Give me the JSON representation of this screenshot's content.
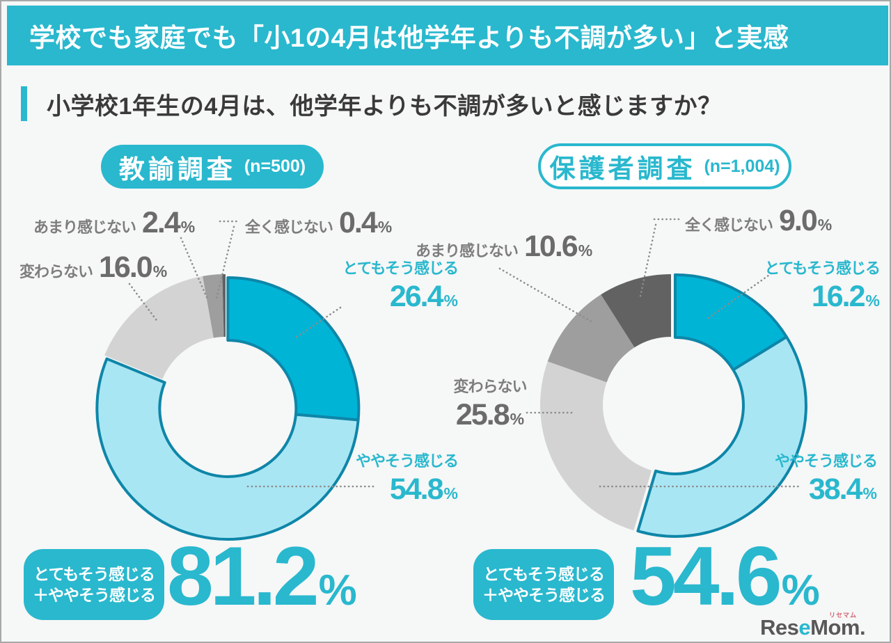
{
  "header": {
    "title": "学校でも家庭でも「小1の4月は他学年よりも不調が多い」と実感"
  },
  "question": {
    "text": "小学校1年生の4月は、他学年よりも不調が多いと感じますか？"
  },
  "strings": {
    "percent": "%"
  },
  "colors": {
    "accent": "#29b8ce",
    "donut_strong": "#00b4d6",
    "donut_soft": "#a9e6f4",
    "donut_stroke": "#0e86a8",
    "gray_light": "#d3d3d4",
    "gray_mid": "#9e9e9e",
    "gray_dark": "#626262",
    "label_gray": "#7d7d7d",
    "number_gray": "#6b6b6b",
    "leader_gray": "#8c8c8c"
  },
  "chart_data": [
    {
      "type": "pie",
      "title": "教諭調査",
      "n_label": "(n=500)",
      "unit": "%",
      "segments": [
        {
          "label": "とてもそう感じる",
          "value": 26.4,
          "display": "26.4",
          "color": "#00b4d6",
          "highlight": true
        },
        {
          "label": "ややそう感じる",
          "value": 54.8,
          "display": "54.8",
          "color": "#a9e6f4",
          "highlight": true
        },
        {
          "label": "変わらない",
          "value": 16.0,
          "display": "16.0",
          "color": "#d3d3d4",
          "highlight": false
        },
        {
          "label": "あまり感じない",
          "value": 2.4,
          "display": "2.4",
          "color": "#9e9e9e",
          "highlight": false
        },
        {
          "label": "全く感じない",
          "value": 0.4,
          "display": "0.4",
          "color": "#626262",
          "highlight": false
        }
      ],
      "summary": {
        "line1": "とてもそう感じる",
        "line2": "＋ややそう感じる",
        "value": "81.2"
      }
    },
    {
      "type": "pie",
      "title": "保護者調査",
      "n_label": "(n=1,004)",
      "unit": "%",
      "segments": [
        {
          "label": "とてもそう感じる",
          "value": 16.2,
          "display": "16.2",
          "color": "#00b4d6",
          "highlight": true
        },
        {
          "label": "ややそう感じる",
          "value": 38.4,
          "display": "38.4",
          "color": "#a9e6f4",
          "highlight": true
        },
        {
          "label": "変わらない",
          "value": 25.8,
          "display": "25.8",
          "color": "#d3d3d4",
          "highlight": false
        },
        {
          "label": "あまり感じない",
          "value": 10.6,
          "display": "10.6",
          "color": "#9e9e9e",
          "highlight": false
        },
        {
          "label": "全く感じない",
          "value": 9.0,
          "display": "9.0",
          "color": "#626262",
          "highlight": false
        }
      ],
      "summary": {
        "line1": "とてもそう感じる",
        "line2": "＋ややそう感じる",
        "value": "54.6"
      }
    }
  ],
  "logo": {
    "part1": "Res",
    "accent": "e",
    "part2": "Mom.",
    "ruby": "リセマム"
  }
}
